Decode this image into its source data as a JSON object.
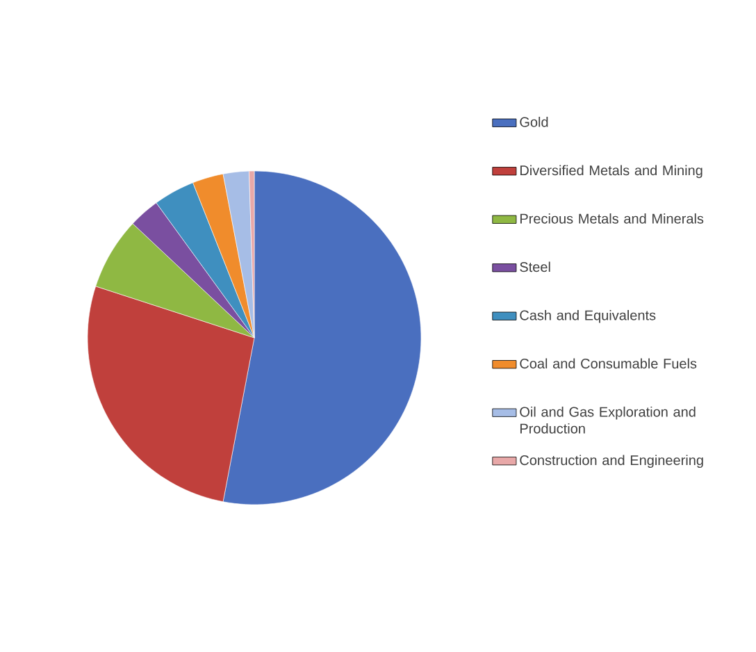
{
  "chart_data": {
    "type": "pie",
    "legend": "right",
    "categories": [
      "Gold",
      "Diversified Metals and Mining",
      "Precious Metals and Minerals",
      "Steel",
      "Cash and Equivalents",
      "Coal and Consumable Fuels",
      "Oil and Gas Exploration and Production",
      "Construction and Engineering"
    ],
    "values": [
      53,
      27,
      7,
      3,
      4,
      3,
      2.5,
      0.5
    ],
    "colors": [
      "#4a6fbf",
      "#c0403c",
      "#8fb843",
      "#7a4fa0",
      "#3f8fbf",
      "#f08c2c",
      "#a6bde6",
      "#e8a8a8"
    ]
  }
}
